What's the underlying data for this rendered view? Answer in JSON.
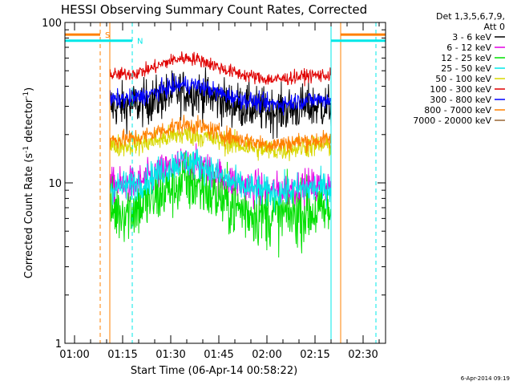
{
  "chart_data": {
    "type": "line",
    "title": "HESSI Observing Summary Count Rates, Corrected",
    "xlabel": "Start Time (06-Apr-14 00:58:22)",
    "ylabel_main": "Corrected Count Rate (s",
    "ylabel_sup1": "-1",
    "ylabel_mid": " detector",
    "ylabel_sup2": "-1",
    "ylabel_end": ")",
    "timestamp": "6-Apr-2014 09:19",
    "yscale": "log",
    "ylim": [
      1,
      100
    ],
    "xlim_minutes": [
      -3,
      97
    ],
    "x_tick_labels": [
      "01:00",
      "01:15",
      "01:30",
      "01:45",
      "02:00",
      "02:15",
      "02:30"
    ],
    "x_tick_minutes": [
      0,
      15,
      30,
      45,
      60,
      75,
      90
    ],
    "y_tick_labels": [
      "1",
      "10",
      "100"
    ],
    "y_tick_values": [
      1,
      10,
      100
    ],
    "legend": {
      "placement": "right",
      "header_line1": "Det 1,3,5,6,7,9,",
      "header_line2": "Att 0"
    },
    "data_window_minutes": [
      11,
      80
    ],
    "series": [
      {
        "name": "3 - 6 keV",
        "color": "#000000",
        "base": 30.0,
        "peak": 37.0,
        "noise": 0.1,
        "draw": true
      },
      {
        "name": "6 - 12 keV",
        "color": "#e400e4",
        "base": 9.5,
        "peak": 13.0,
        "noise": 0.08,
        "draw": true
      },
      {
        "name": "12 - 25 keV",
        "color": "#00e000",
        "base": 6.6,
        "peak": 10.0,
        "noise": 0.14,
        "draw": true
      },
      {
        "name": "25 - 50 keV",
        "color": "#00e8e8",
        "base": 9.3,
        "peak": 13.5,
        "noise": 0.07,
        "draw": true
      },
      {
        "name": "50 - 100 keV",
        "color": "#d8d800",
        "base": 17.0,
        "peak": 20.0,
        "noise": 0.05,
        "draw": true
      },
      {
        "name": "100 - 300 keV",
        "color": "#e00000",
        "base": 47.0,
        "peak": 60.0,
        "noise": 0.03,
        "draw": true
      },
      {
        "name": "300 - 800 keV",
        "color": "#0000ff",
        "base": 33.0,
        "peak": 41.0,
        "noise": 0.04,
        "draw": true
      },
      {
        "name": "800 - 7000 keV",
        "color": "#ff8000",
        "base": 18.5,
        "peak": 23.0,
        "noise": 0.04,
        "draw": true
      },
      {
        "name": "7000 - 20000 keV",
        "color": "#996633",
        "base": 0,
        "peak": 0,
        "noise": 0,
        "draw": false
      }
    ],
    "flag_bars": [
      {
        "label": "S",
        "color": "#ff8000",
        "y_value": 84,
        "segments": [
          [
            -3,
            8
          ],
          [
            83,
            97
          ]
        ]
      },
      {
        "label": "N",
        "color": "#00e8e8",
        "y_value": 77,
        "segments": [
          [
            -3,
            18
          ],
          [
            80,
            97
          ]
        ]
      }
    ],
    "markers": [
      {
        "minute": 8,
        "color": "#ff8000",
        "style": "dashed"
      },
      {
        "minute": 11,
        "color": "#ff8000",
        "style": "solid"
      },
      {
        "minute": 18,
        "color": "#00e8e8",
        "style": "dashed"
      },
      {
        "minute": 80,
        "color": "#00e8e8",
        "style": "solid"
      },
      {
        "minute": 83,
        "color": "#ff8000",
        "style": "solid"
      },
      {
        "minute": 94,
        "color": "#00e8e8",
        "style": "dashed"
      }
    ],
    "grid": false
  }
}
